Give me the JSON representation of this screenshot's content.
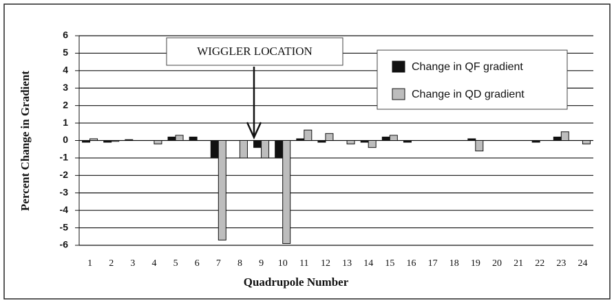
{
  "chart_data": {
    "type": "bar",
    "annotation": "WIGGLER LOCATION",
    "x_label": "Quadrupole Number",
    "y_label": "Percent Change in Gradient",
    "categories": [
      "1",
      "2",
      "3",
      "4",
      "5",
      "6",
      "7",
      "8",
      "9",
      "10",
      "11",
      "12",
      "13",
      "14",
      "15",
      "16",
      "17",
      "18",
      "19",
      "20",
      "21",
      "22",
      "23",
      "24"
    ],
    "series": [
      {
        "name": "Change in QF gradient",
        "color": "#111111",
        "values": [
          -0.1,
          -0.1,
          0.05,
          0,
          0.2,
          0.2,
          -1.0,
          0,
          -0.4,
          -1.0,
          0.1,
          -0.1,
          0,
          -0.1,
          0.2,
          -0.1,
          0,
          0,
          0.1,
          0,
          0,
          -0.1,
          0.2,
          0
        ]
      },
      {
        "name": "Change in QD gradient",
        "color": "#bdbdbd",
        "values": [
          0.1,
          -0.05,
          0,
          -0.2,
          0.3,
          0,
          -5.7,
          -1.0,
          -1.0,
          -5.9,
          0.6,
          0.4,
          -0.2,
          -0.4,
          0.3,
          0,
          0,
          0,
          -0.6,
          0,
          0,
          0,
          0.5,
          -0.2
        ]
      }
    ],
    "ylim": [
      -6,
      6
    ],
    "yticks": [
      -6,
      -5,
      -4,
      -3,
      -2,
      -1,
      0,
      1,
      2,
      3,
      4,
      5,
      6
    ],
    "grid": true,
    "legend": "upper right"
  }
}
